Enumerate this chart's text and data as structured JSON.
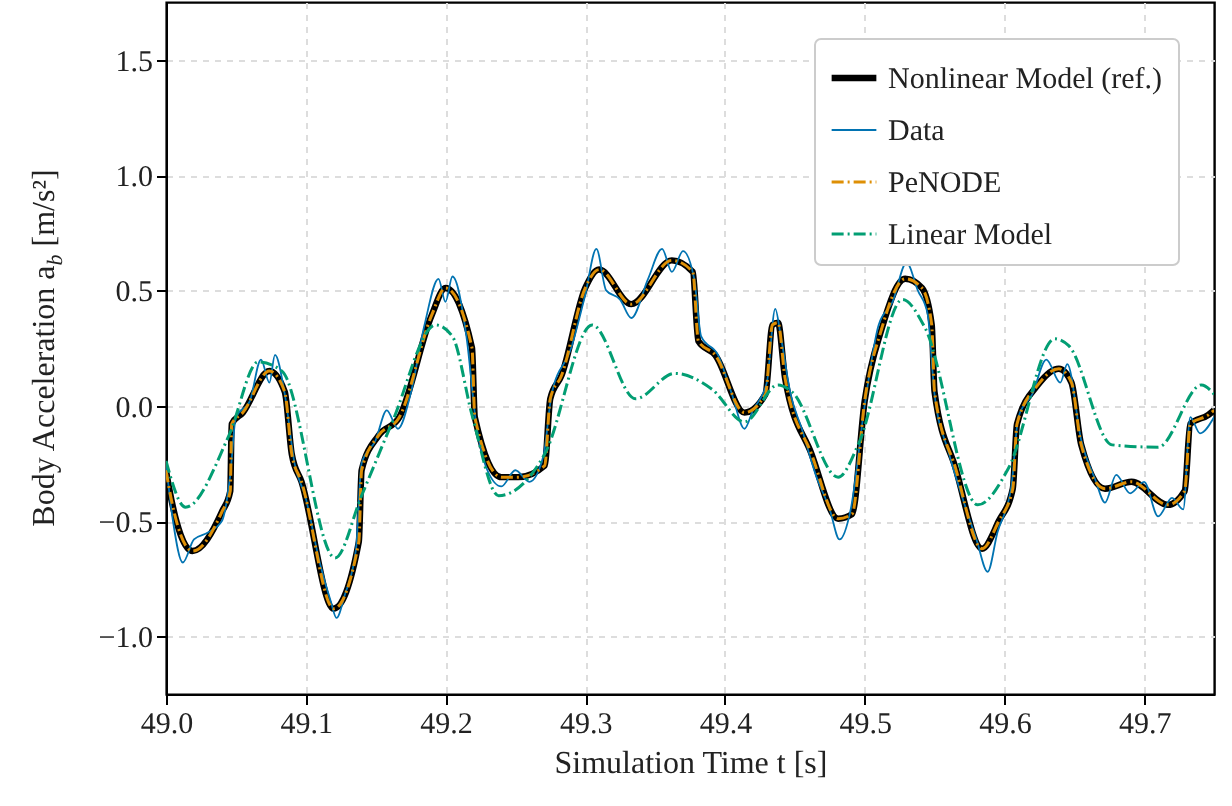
{
  "chart_data": {
    "type": "line",
    "xlabel": "Simulation Time t [s]",
    "ylabel": "Body Acceleration a$_{b}$ [m/s²]",
    "xlim": [
      49.0,
      49.75
    ],
    "ylim": [
      -1.25,
      1.75
    ],
    "xticks": [
      {
        "value": 49.0,
        "label": "49.0"
      },
      {
        "value": 49.1,
        "label": "49.1"
      },
      {
        "value": 49.2,
        "label": "49.2"
      },
      {
        "value": 49.3,
        "label": "49.3"
      },
      {
        "value": 49.4,
        "label": "49.4"
      },
      {
        "value": 49.5,
        "label": "49.5"
      },
      {
        "value": 49.6,
        "label": "49.6"
      },
      {
        "value": 49.7,
        "label": "49.7"
      }
    ],
    "yticks": [
      {
        "value": -1.0,
        "label": "−1.0"
      },
      {
        "value": -0.5,
        "label": "−0.5"
      },
      {
        "value": 0.0,
        "label": "0.0"
      },
      {
        "value": 0.5,
        "label": "0.5"
      },
      {
        "value": 1.0,
        "label": "1.0"
      },
      {
        "value": 1.5,
        "label": "1.5"
      }
    ],
    "grid": true,
    "legend": "top right",
    "x": [
      49.0,
      49.002,
      49.019,
      49.04,
      49.046,
      49.047,
      49.055,
      49.074,
      49.085,
      49.09,
      49.097,
      49.12,
      49.138,
      49.14,
      49.152,
      49.167,
      49.19,
      49.2,
      49.219,
      49.221,
      49.24,
      49.252,
      49.271,
      49.275,
      49.283,
      49.3,
      49.31,
      49.333,
      49.362,
      49.377,
      49.381,
      49.393,
      49.414,
      49.429,
      49.434,
      49.438,
      49.443,
      49.462,
      49.481,
      49.491,
      49.5,
      49.512,
      49.529,
      49.541,
      49.548,
      49.55,
      49.565,
      49.584,
      49.596,
      49.606,
      49.609,
      49.624,
      49.639,
      49.648,
      49.655,
      49.672,
      49.691,
      49.717,
      49.729,
      49.733,
      49.746,
      49.75
    ],
    "series": [
      {
        "name": "Nonlinear Model (ref.)",
        "color": "#000000",
        "line_style": "solid",
        "values": [
          -0.28,
          -0.35,
          -0.63,
          -0.46,
          -0.37,
          -0.08,
          -0.03,
          0.15,
          0.06,
          -0.21,
          -0.33,
          -0.88,
          -0.59,
          -0.28,
          -0.13,
          -0.05,
          0.39,
          0.51,
          0.25,
          -0.05,
          -0.31,
          -0.31,
          -0.26,
          0.03,
          0.13,
          0.51,
          0.59,
          0.44,
          0.63,
          0.58,
          0.28,
          0.22,
          -0.03,
          0.05,
          0.35,
          0.36,
          0.12,
          -0.21,
          -0.49,
          -0.47,
          0.02,
          0.33,
          0.55,
          0.51,
          0.35,
          0.06,
          -0.27,
          -0.62,
          -0.5,
          -0.36,
          -0.08,
          0.09,
          0.16,
          0.1,
          -0.17,
          -0.36,
          -0.33,
          -0.43,
          -0.37,
          -0.08,
          -0.04,
          -0.02
        ]
      },
      {
        "name": "Data",
        "color": "#0173b2",
        "line_style": "solid",
        "x": [
          49.0,
          49.005,
          49.012,
          49.02,
          49.03,
          49.04,
          49.046,
          49.05,
          49.06,
          49.068,
          49.074,
          49.078,
          49.085,
          49.092,
          49.1,
          49.11,
          49.118,
          49.122,
          49.128,
          49.136,
          49.14,
          49.15,
          49.158,
          49.166,
          49.175,
          49.185,
          49.195,
          49.2,
          49.205,
          49.215,
          49.222,
          49.23,
          49.24,
          49.25,
          49.26,
          49.27,
          49.276,
          49.29,
          49.3,
          49.308,
          49.315,
          49.325,
          49.333,
          49.345,
          49.355,
          49.362,
          49.37,
          49.378,
          49.383,
          49.395,
          49.405,
          49.414,
          49.42,
          49.43,
          49.436,
          49.44,
          49.447,
          49.455,
          49.465,
          49.475,
          49.482,
          49.49,
          49.5,
          49.51,
          49.52,
          49.53,
          49.538,
          49.545,
          49.55,
          49.56,
          49.57,
          49.58,
          49.588,
          49.595,
          49.605,
          49.61,
          49.62,
          49.63,
          49.64,
          49.645,
          49.655,
          49.665,
          49.672,
          49.68,
          49.69,
          49.7,
          49.71,
          49.72,
          49.728,
          49.733,
          49.74,
          49.75
        ],
        "values": [
          -0.25,
          -0.5,
          -0.68,
          -0.58,
          -0.55,
          -0.5,
          -0.3,
          -0.05,
          0.02,
          0.2,
          0.1,
          0.22,
          0.05,
          -0.25,
          -0.4,
          -0.68,
          -0.85,
          -0.92,
          -0.82,
          -0.62,
          -0.25,
          -0.15,
          -0.02,
          -0.1,
          0.05,
          0.35,
          0.55,
          0.45,
          0.56,
          0.3,
          -0.08,
          -0.28,
          -0.35,
          -0.28,
          -0.33,
          -0.22,
          0.05,
          0.25,
          0.48,
          0.68,
          0.5,
          0.46,
          0.38,
          0.55,
          0.68,
          0.58,
          0.67,
          0.55,
          0.3,
          0.22,
          0.05,
          -0.1,
          -0.02,
          0.1,
          0.42,
          0.3,
          0.05,
          -0.1,
          -0.3,
          -0.45,
          -0.58,
          -0.45,
          0.0,
          0.35,
          0.45,
          0.62,
          0.5,
          0.4,
          0.05,
          -0.2,
          -0.4,
          -0.58,
          -0.72,
          -0.55,
          -0.35,
          -0.05,
          0.05,
          0.2,
          0.1,
          0.18,
          -0.15,
          -0.32,
          -0.42,
          -0.3,
          -0.38,
          -0.33,
          -0.48,
          -0.4,
          -0.45,
          -0.05,
          -0.12,
          -0.05
        ]
      },
      {
        "name": "PeNODE",
        "color": "#de8f05",
        "line_style": "dashdot",
        "values": [
          -0.28,
          -0.35,
          -0.63,
          -0.46,
          -0.37,
          -0.08,
          -0.03,
          0.15,
          0.06,
          -0.21,
          -0.33,
          -0.88,
          -0.59,
          -0.28,
          -0.13,
          -0.05,
          0.39,
          0.51,
          0.25,
          -0.05,
          -0.31,
          -0.31,
          -0.26,
          0.03,
          0.13,
          0.51,
          0.59,
          0.44,
          0.63,
          0.58,
          0.28,
          0.22,
          -0.03,
          0.05,
          0.35,
          0.36,
          0.12,
          -0.21,
          -0.49,
          -0.47,
          0.02,
          0.33,
          0.55,
          0.51,
          0.35,
          0.06,
          -0.27,
          -0.62,
          -0.5,
          -0.36,
          -0.08,
          0.09,
          0.16,
          0.1,
          -0.17,
          -0.36,
          -0.33,
          -0.43,
          -0.37,
          -0.08,
          -0.04,
          -0.02
        ]
      },
      {
        "name": "Linear Model",
        "color": "#029e73",
        "line_style": "dashdot",
        "x": [
          49.0,
          49.014,
          49.045,
          49.066,
          49.083,
          49.121,
          49.14,
          49.162,
          49.193,
          49.205,
          49.219,
          49.238,
          49.271,
          49.305,
          49.336,
          49.364,
          49.391,
          49.414,
          49.438,
          49.448,
          49.481,
          49.496,
          49.527,
          49.543,
          49.581,
          49.603,
          49.636,
          49.646,
          49.677,
          49.71,
          49.741,
          49.75
        ],
        "values": [
          -0.24,
          -0.44,
          -0.13,
          0.19,
          0.15,
          -0.66,
          -0.39,
          -0.07,
          0.35,
          0.3,
          -0.04,
          -0.39,
          -0.21,
          0.35,
          0.03,
          0.14,
          0.07,
          -0.07,
          0.09,
          0.06,
          -0.31,
          -0.16,
          0.46,
          0.34,
          -0.43,
          -0.27,
          0.29,
          0.26,
          -0.17,
          -0.18,
          0.09,
          0.05
        ]
      }
    ]
  }
}
